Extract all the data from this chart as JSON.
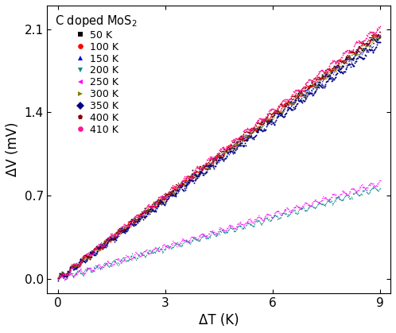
{
  "title": "C doped MoS$_2$",
  "xlabel": "ΔT (K)",
  "ylabel": "ΔV (mV)",
  "xlim": [
    -0.3,
    9.3
  ],
  "ylim": [
    -0.12,
    2.3
  ],
  "xticks": [
    0,
    3,
    6,
    9
  ],
  "yticks": [
    0.0,
    0.7,
    1.4,
    2.1
  ],
  "series": [
    {
      "label": "50 K",
      "color": "#000000",
      "marker": "s",
      "slope": 0.228,
      "amplitude": 0.025,
      "freq": 3.0
    },
    {
      "label": "100 K",
      "color": "#ff0000",
      "marker": "o",
      "slope": 0.23,
      "amplitude": 0.02,
      "freq": 3.2
    },
    {
      "label": "150 K",
      "color": "#0000dd",
      "marker": "^",
      "slope": 0.226,
      "amplitude": 0.022,
      "freq": 3.5
    },
    {
      "label": "200 K",
      "color": "#008888",
      "marker": "v",
      "slope": 0.085,
      "amplitude": 0.018,
      "freq": 4.0
    },
    {
      "label": "250 K",
      "color": "#ff00ff",
      "marker": "<",
      "slope": 0.09,
      "amplitude": 0.018,
      "freq": 3.8
    },
    {
      "label": "300 K",
      "color": "#808000",
      "marker": ">",
      "slope": 0.227,
      "amplitude": 0.02,
      "freq": 3.3
    },
    {
      "label": "350 K",
      "color": "#000080",
      "marker": "D",
      "slope": 0.22,
      "amplitude": 0.022,
      "freq": 3.6
    },
    {
      "label": "400 K",
      "color": "#8B0000",
      "marker": "p",
      "slope": 0.232,
      "amplitude": 0.02,
      "freq": 3.1
    },
    {
      "label": "410 K",
      "color": "#ff1493",
      "marker": "o",
      "slope": 0.236,
      "amplitude": 0.02,
      "freq": 2.9
    }
  ],
  "n_points": 500,
  "figsize": [
    4.98,
    4.19
  ],
  "dpi": 100
}
